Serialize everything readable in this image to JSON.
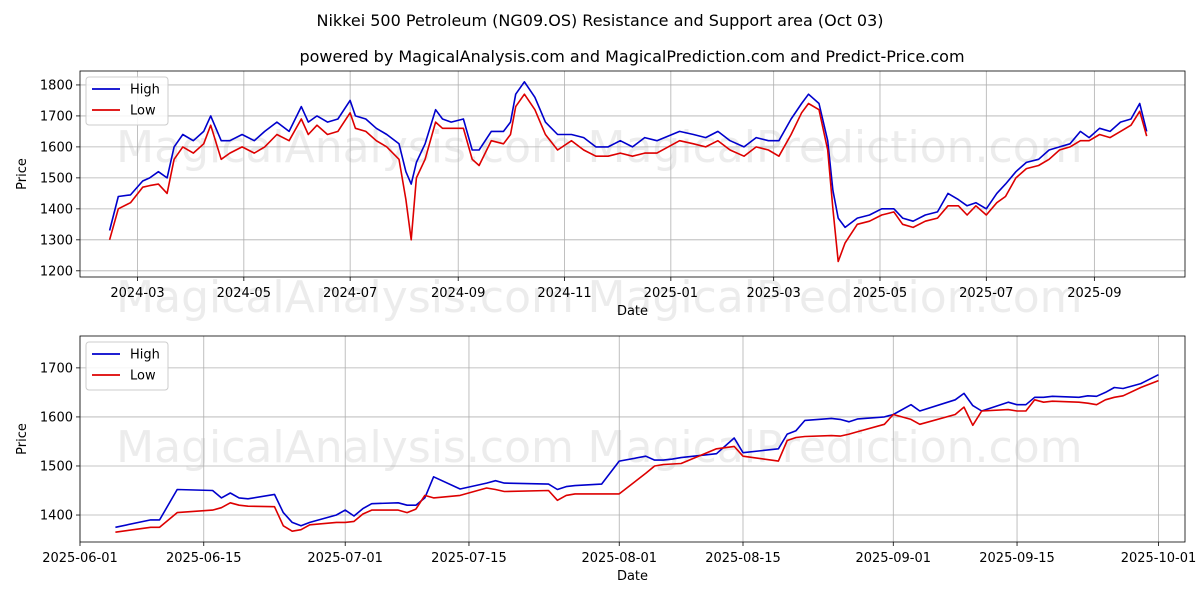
{
  "title": "Nikkei 500 Petroleum (NG09.OS) Resistance and Support area (Oct 03)",
  "subtitle": "powered by MagicalAnalysis.com and MagicalPrediction.com and Predict-Price.com",
  "watermarks": [
    "MagicalAnalysis.com",
    "MagicalPrediction.com",
    "MagicalAnalysis.com",
    "MagicalPrediction.com",
    "MagicalAnalysis.com",
    "MagicalPrediction.com"
  ],
  "colors": {
    "high": "#0000cc",
    "low": "#dd0000",
    "grid": "#b0b0b0"
  },
  "chart_data": [
    {
      "type": "line",
      "xlabel": "Date",
      "ylabel": "Price",
      "xlim": [
        "2024-01-28",
        "2025-10-23"
      ],
      "ylim": [
        1180,
        1845
      ],
      "xticks": [
        "2024-03-01",
        "2024-05-01",
        "2024-07-01",
        "2024-09-01",
        "2024-11-01",
        "2025-01-01",
        "2025-03-01",
        "2025-05-01",
        "2025-07-01",
        "2025-09-01"
      ],
      "xtick_labels": [
        "2024-03",
        "2024-05",
        "2024-07",
        "2024-09",
        "2024-11",
        "2025-01",
        "2025-03",
        "2025-05",
        "2025-07",
        "2025-09"
      ],
      "yticks": [
        1200,
        1300,
        1400,
        1500,
        1600,
        1700,
        1800
      ],
      "legend": {
        "position": "top-left",
        "entries": [
          "High",
          "Low"
        ]
      },
      "series": [
        {
          "name": "High",
          "x": [
            "2024-02-14",
            "2024-02-19",
            "2024-02-26",
            "2024-03-04",
            "2024-03-08",
            "2024-03-13",
            "2024-03-18",
            "2024-03-22",
            "2024-03-27",
            "2024-04-02",
            "2024-04-08",
            "2024-04-12",
            "2024-04-18",
            "2024-04-23",
            "2024-04-30",
            "2024-05-07",
            "2024-05-13",
            "2024-05-20",
            "2024-05-27",
            "2024-06-03",
            "2024-06-07",
            "2024-06-12",
            "2024-06-18",
            "2024-06-24",
            "2024-07-01",
            "2024-07-04",
            "2024-07-10",
            "2024-07-16",
            "2024-07-22",
            "2024-07-29",
            "2024-08-02",
            "2024-08-05",
            "2024-08-08",
            "2024-08-13",
            "2024-08-19",
            "2024-08-23",
            "2024-08-28",
            "2024-09-04",
            "2024-09-09",
            "2024-09-13",
            "2024-09-20",
            "2024-09-27",
            "2024-10-01",
            "2024-10-04",
            "2024-10-09",
            "2024-10-15",
            "2024-10-21",
            "2024-10-28",
            "2024-11-05",
            "2024-11-12",
            "2024-11-19",
            "2024-11-26",
            "2024-12-03",
            "2024-12-10",
            "2024-12-17",
            "2024-12-24",
            "2025-01-06",
            "2025-01-14",
            "2025-01-21",
            "2025-01-28",
            "2025-02-04",
            "2025-02-12",
            "2025-02-19",
            "2025-02-26",
            "2025-03-04",
            "2025-03-11",
            "2025-03-17",
            "2025-03-21",
            "2025-03-27",
            "2025-04-01",
            "2025-04-04",
            "2025-04-07",
            "2025-04-11",
            "2025-04-18",
            "2025-04-25",
            "2025-05-02",
            "2025-05-09",
            "2025-05-14",
            "2025-05-20",
            "2025-05-27",
            "2025-06-03",
            "2025-06-09",
            "2025-06-15",
            "2025-06-20",
            "2025-06-25",
            "2025-07-01",
            "2025-07-07",
            "2025-07-12",
            "2025-07-18",
            "2025-07-24",
            "2025-07-31",
            "2025-08-06",
            "2025-08-12",
            "2025-08-18",
            "2025-08-24",
            "2025-08-29",
            "2025-09-04",
            "2025-09-10",
            "2025-09-16",
            "2025-09-22",
            "2025-09-27",
            "2025-10-01"
          ],
          "y": [
            1330,
            1440,
            1445,
            1490,
            1500,
            1520,
            1500,
            1600,
            1640,
            1620,
            1650,
            1700,
            1620,
            1620,
            1640,
            1620,
            1650,
            1680,
            1650,
            1730,
            1680,
            1700,
            1680,
            1690,
            1750,
            1700,
            1690,
            1660,
            1640,
            1610,
            1520,
            1480,
            1550,
            1610,
            1720,
            1690,
            1680,
            1690,
            1590,
            1590,
            1650,
            1650,
            1680,
            1770,
            1810,
            1760,
            1680,
            1640,
            1640,
            1630,
            1600,
            1600,
            1620,
            1600,
            1630,
            1620,
            1650,
            1640,
            1630,
            1650,
            1620,
            1600,
            1630,
            1620,
            1620,
            1690,
            1740,
            1770,
            1740,
            1620,
            1460,
            1370,
            1340,
            1370,
            1380,
            1400,
            1400,
            1370,
            1360,
            1380,
            1390,
            1450,
            1430,
            1410,
            1420,
            1400,
            1450,
            1480,
            1520,
            1550,
            1560,
            1590,
            1600,
            1610,
            1650,
            1630,
            1660,
            1650,
            1680,
            1690,
            1740,
            1650
          ]
        },
        {
          "name": "Low",
          "x": [
            "2024-02-14",
            "2024-02-19",
            "2024-02-26",
            "2024-03-04",
            "2024-03-08",
            "2024-03-13",
            "2024-03-18",
            "2024-03-22",
            "2024-03-27",
            "2024-04-02",
            "2024-04-08",
            "2024-04-12",
            "2024-04-18",
            "2024-04-23",
            "2024-04-30",
            "2024-05-07",
            "2024-05-13",
            "2024-05-20",
            "2024-05-27",
            "2024-06-03",
            "2024-06-07",
            "2024-06-12",
            "2024-06-18",
            "2024-06-24",
            "2024-07-01",
            "2024-07-04",
            "2024-07-10",
            "2024-07-16",
            "2024-07-22",
            "2024-07-29",
            "2024-08-02",
            "2024-08-05",
            "2024-08-08",
            "2024-08-13",
            "2024-08-19",
            "2024-08-23",
            "2024-08-28",
            "2024-09-04",
            "2024-09-09",
            "2024-09-13",
            "2024-09-20",
            "2024-09-27",
            "2024-10-01",
            "2024-10-04",
            "2024-10-09",
            "2024-10-15",
            "2024-10-21",
            "2024-10-28",
            "2024-11-05",
            "2024-11-12",
            "2024-11-19",
            "2024-11-26",
            "2024-12-03",
            "2024-12-10",
            "2024-12-17",
            "2024-12-24",
            "2025-01-06",
            "2025-01-14",
            "2025-01-21",
            "2025-01-28",
            "2025-02-04",
            "2025-02-12",
            "2025-02-19",
            "2025-02-26",
            "2025-03-04",
            "2025-03-11",
            "2025-03-17",
            "2025-03-21",
            "2025-03-27",
            "2025-04-01",
            "2025-04-04",
            "2025-04-07",
            "2025-04-11",
            "2025-04-18",
            "2025-04-25",
            "2025-05-02",
            "2025-05-09",
            "2025-05-14",
            "2025-05-20",
            "2025-05-27",
            "2025-06-03",
            "2025-06-09",
            "2025-06-15",
            "2025-06-20",
            "2025-06-25",
            "2025-07-01",
            "2025-07-07",
            "2025-07-12",
            "2025-07-18",
            "2025-07-24",
            "2025-07-31",
            "2025-08-06",
            "2025-08-12",
            "2025-08-18",
            "2025-08-24",
            "2025-08-29",
            "2025-09-04",
            "2025-09-10",
            "2025-09-16",
            "2025-09-22",
            "2025-09-27",
            "2025-10-01"
          ],
          "y": [
            1300,
            1400,
            1420,
            1470,
            1475,
            1480,
            1450,
            1560,
            1600,
            1580,
            1610,
            1670,
            1560,
            1580,
            1600,
            1580,
            1600,
            1640,
            1620,
            1690,
            1640,
            1670,
            1640,
            1650,
            1710,
            1660,
            1650,
            1620,
            1600,
            1560,
            1430,
            1300,
            1500,
            1560,
            1680,
            1660,
            1660,
            1660,
            1560,
            1540,
            1620,
            1610,
            1640,
            1730,
            1770,
            1720,
            1640,
            1590,
            1620,
            1590,
            1570,
            1570,
            1580,
            1570,
            1580,
            1580,
            1620,
            1610,
            1600,
            1620,
            1590,
            1570,
            1600,
            1590,
            1570,
            1640,
            1710,
            1740,
            1720,
            1590,
            1400,
            1230,
            1290,
            1350,
            1360,
            1380,
            1390,
            1350,
            1340,
            1360,
            1370,
            1410,
            1410,
            1380,
            1410,
            1380,
            1420,
            1440,
            1500,
            1530,
            1540,
            1560,
            1590,
            1600,
            1620,
            1620,
            1640,
            1630,
            1650,
            1670,
            1715,
            1635
          ]
        }
      ]
    },
    {
      "type": "line",
      "xlabel": "Date",
      "ylabel": "Price",
      "xlim": [
        "2025-06-01",
        "2025-10-04"
      ],
      "ylim": [
        1345,
        1765
      ],
      "xticks": [
        "2025-06-01",
        "2025-06-15",
        "2025-07-01",
        "2025-07-15",
        "2025-08-01",
        "2025-08-15",
        "2025-09-01",
        "2025-09-15",
        "2025-10-01"
      ],
      "xtick_labels": [
        "2025-06-01",
        "2025-06-15",
        "2025-07-01",
        "2025-07-15",
        "2025-08-01",
        "2025-08-15",
        "2025-09-01",
        "2025-09-15",
        "2025-10-01"
      ],
      "yticks": [
        1400,
        1500,
        1600,
        1700
      ],
      "legend": {
        "position": "top-left",
        "entries": [
          "High",
          "Low"
        ]
      },
      "series": [
        {
          "name": "High",
          "x": [
            "2025-06-05",
            "2025-06-09",
            "2025-06-10",
            "2025-06-12",
            "2025-06-16",
            "2025-06-17",
            "2025-06-18",
            "2025-06-19",
            "2025-06-20",
            "2025-06-23",
            "2025-06-24",
            "2025-06-25",
            "2025-06-26",
            "2025-06-27",
            "2025-06-30",
            "2025-07-01",
            "2025-07-02",
            "2025-07-03",
            "2025-07-04",
            "2025-07-07",
            "2025-07-08",
            "2025-07-09",
            "2025-07-10",
            "2025-07-11",
            "2025-07-14",
            "2025-07-17",
            "2025-07-18",
            "2025-07-19",
            "2025-07-24",
            "2025-07-25",
            "2025-07-26",
            "2025-07-27",
            "2025-07-30",
            "2025-08-01",
            "2025-08-04",
            "2025-08-05",
            "2025-08-06",
            "2025-08-07",
            "2025-08-08",
            "2025-08-12",
            "2025-08-14",
            "2025-08-15",
            "2025-08-19",
            "2025-08-20",
            "2025-08-21",
            "2025-08-22",
            "2025-08-25",
            "2025-08-26",
            "2025-08-27",
            "2025-08-28",
            "2025-08-31",
            "2025-09-01",
            "2025-09-03",
            "2025-09-04",
            "2025-09-08",
            "2025-09-09",
            "2025-09-10",
            "2025-09-11",
            "2025-09-14",
            "2025-09-15",
            "2025-09-16",
            "2025-09-17",
            "2025-09-18",
            "2025-09-19",
            "2025-09-22",
            "2025-09-23",
            "2025-09-24",
            "2025-09-25",
            "2025-09-26",
            "2025-09-27",
            "2025-09-29",
            "2025-10-01"
          ],
          "y": [
            1375,
            1390,
            1390,
            1452,
            1450,
            1435,
            1445,
            1435,
            1433,
            1442,
            1405,
            1385,
            1378,
            1385,
            1400,
            1410,
            1398,
            1413,
            1423,
            1425,
            1420,
            1420,
            1435,
            1478,
            1453,
            1465,
            1470,
            1465,
            1463,
            1452,
            1458,
            1460,
            1463,
            1510,
            1520,
            1512,
            1512,
            1514,
            1517,
            1525,
            1557,
            1527,
            1535,
            1565,
            1572,
            1593,
            1597,
            1595,
            1590,
            1596,
            1600,
            1605,
            1625,
            1612,
            1635,
            1648,
            1623,
            1612,
            1630,
            1625,
            1625,
            1640,
            1640,
            1642,
            1640,
            1643,
            1642,
            1650,
            1660,
            1658,
            1668,
            1686
          ]
        },
        {
          "name": "Low",
          "x": [
            "2025-06-05",
            "2025-06-09",
            "2025-06-10",
            "2025-06-12",
            "2025-06-16",
            "2025-06-17",
            "2025-06-18",
            "2025-06-19",
            "2025-06-20",
            "2025-06-23",
            "2025-06-24",
            "2025-06-25",
            "2025-06-26",
            "2025-06-27",
            "2025-06-30",
            "2025-07-01",
            "2025-07-02",
            "2025-07-03",
            "2025-07-04",
            "2025-07-07",
            "2025-07-08",
            "2025-07-09",
            "2025-07-10",
            "2025-07-11",
            "2025-07-14",
            "2025-07-17",
            "2025-07-18",
            "2025-07-19",
            "2025-07-24",
            "2025-07-25",
            "2025-07-26",
            "2025-07-27",
            "2025-07-30",
            "2025-08-01",
            "2025-08-04",
            "2025-08-05",
            "2025-08-06",
            "2025-08-07",
            "2025-08-08",
            "2025-08-12",
            "2025-08-14",
            "2025-08-15",
            "2025-08-19",
            "2025-08-20",
            "2025-08-21",
            "2025-08-22",
            "2025-08-25",
            "2025-08-26",
            "2025-08-27",
            "2025-08-28",
            "2025-08-31",
            "2025-09-01",
            "2025-09-03",
            "2025-09-04",
            "2025-09-08",
            "2025-09-09",
            "2025-09-10",
            "2025-09-11",
            "2025-09-14",
            "2025-09-15",
            "2025-09-16",
            "2025-09-17",
            "2025-09-18",
            "2025-09-19",
            "2025-09-22",
            "2025-09-23",
            "2025-09-24",
            "2025-09-25",
            "2025-09-26",
            "2025-09-27",
            "2025-09-29",
            "2025-10-01"
          ],
          "y": [
            1365,
            1375,
            1375,
            1405,
            1410,
            1415,
            1425,
            1420,
            1418,
            1417,
            1378,
            1367,
            1370,
            1380,
            1385,
            1385,
            1387,
            1402,
            1410,
            1410,
            1405,
            1412,
            1440,
            1435,
            1440,
            1455,
            1452,
            1448,
            1450,
            1430,
            1440,
            1443,
            1443,
            1443,
            1485,
            1500,
            1503,
            1504,
            1505,
            1535,
            1540,
            1520,
            1510,
            1552,
            1558,
            1560,
            1562,
            1561,
            1565,
            1570,
            1585,
            1605,
            1595,
            1585,
            1605,
            1620,
            1583,
            1612,
            1615,
            1612,
            1612,
            1635,
            1630,
            1632,
            1630,
            1628,
            1625,
            1635,
            1640,
            1643,
            1660,
            1674
          ]
        }
      ]
    }
  ]
}
